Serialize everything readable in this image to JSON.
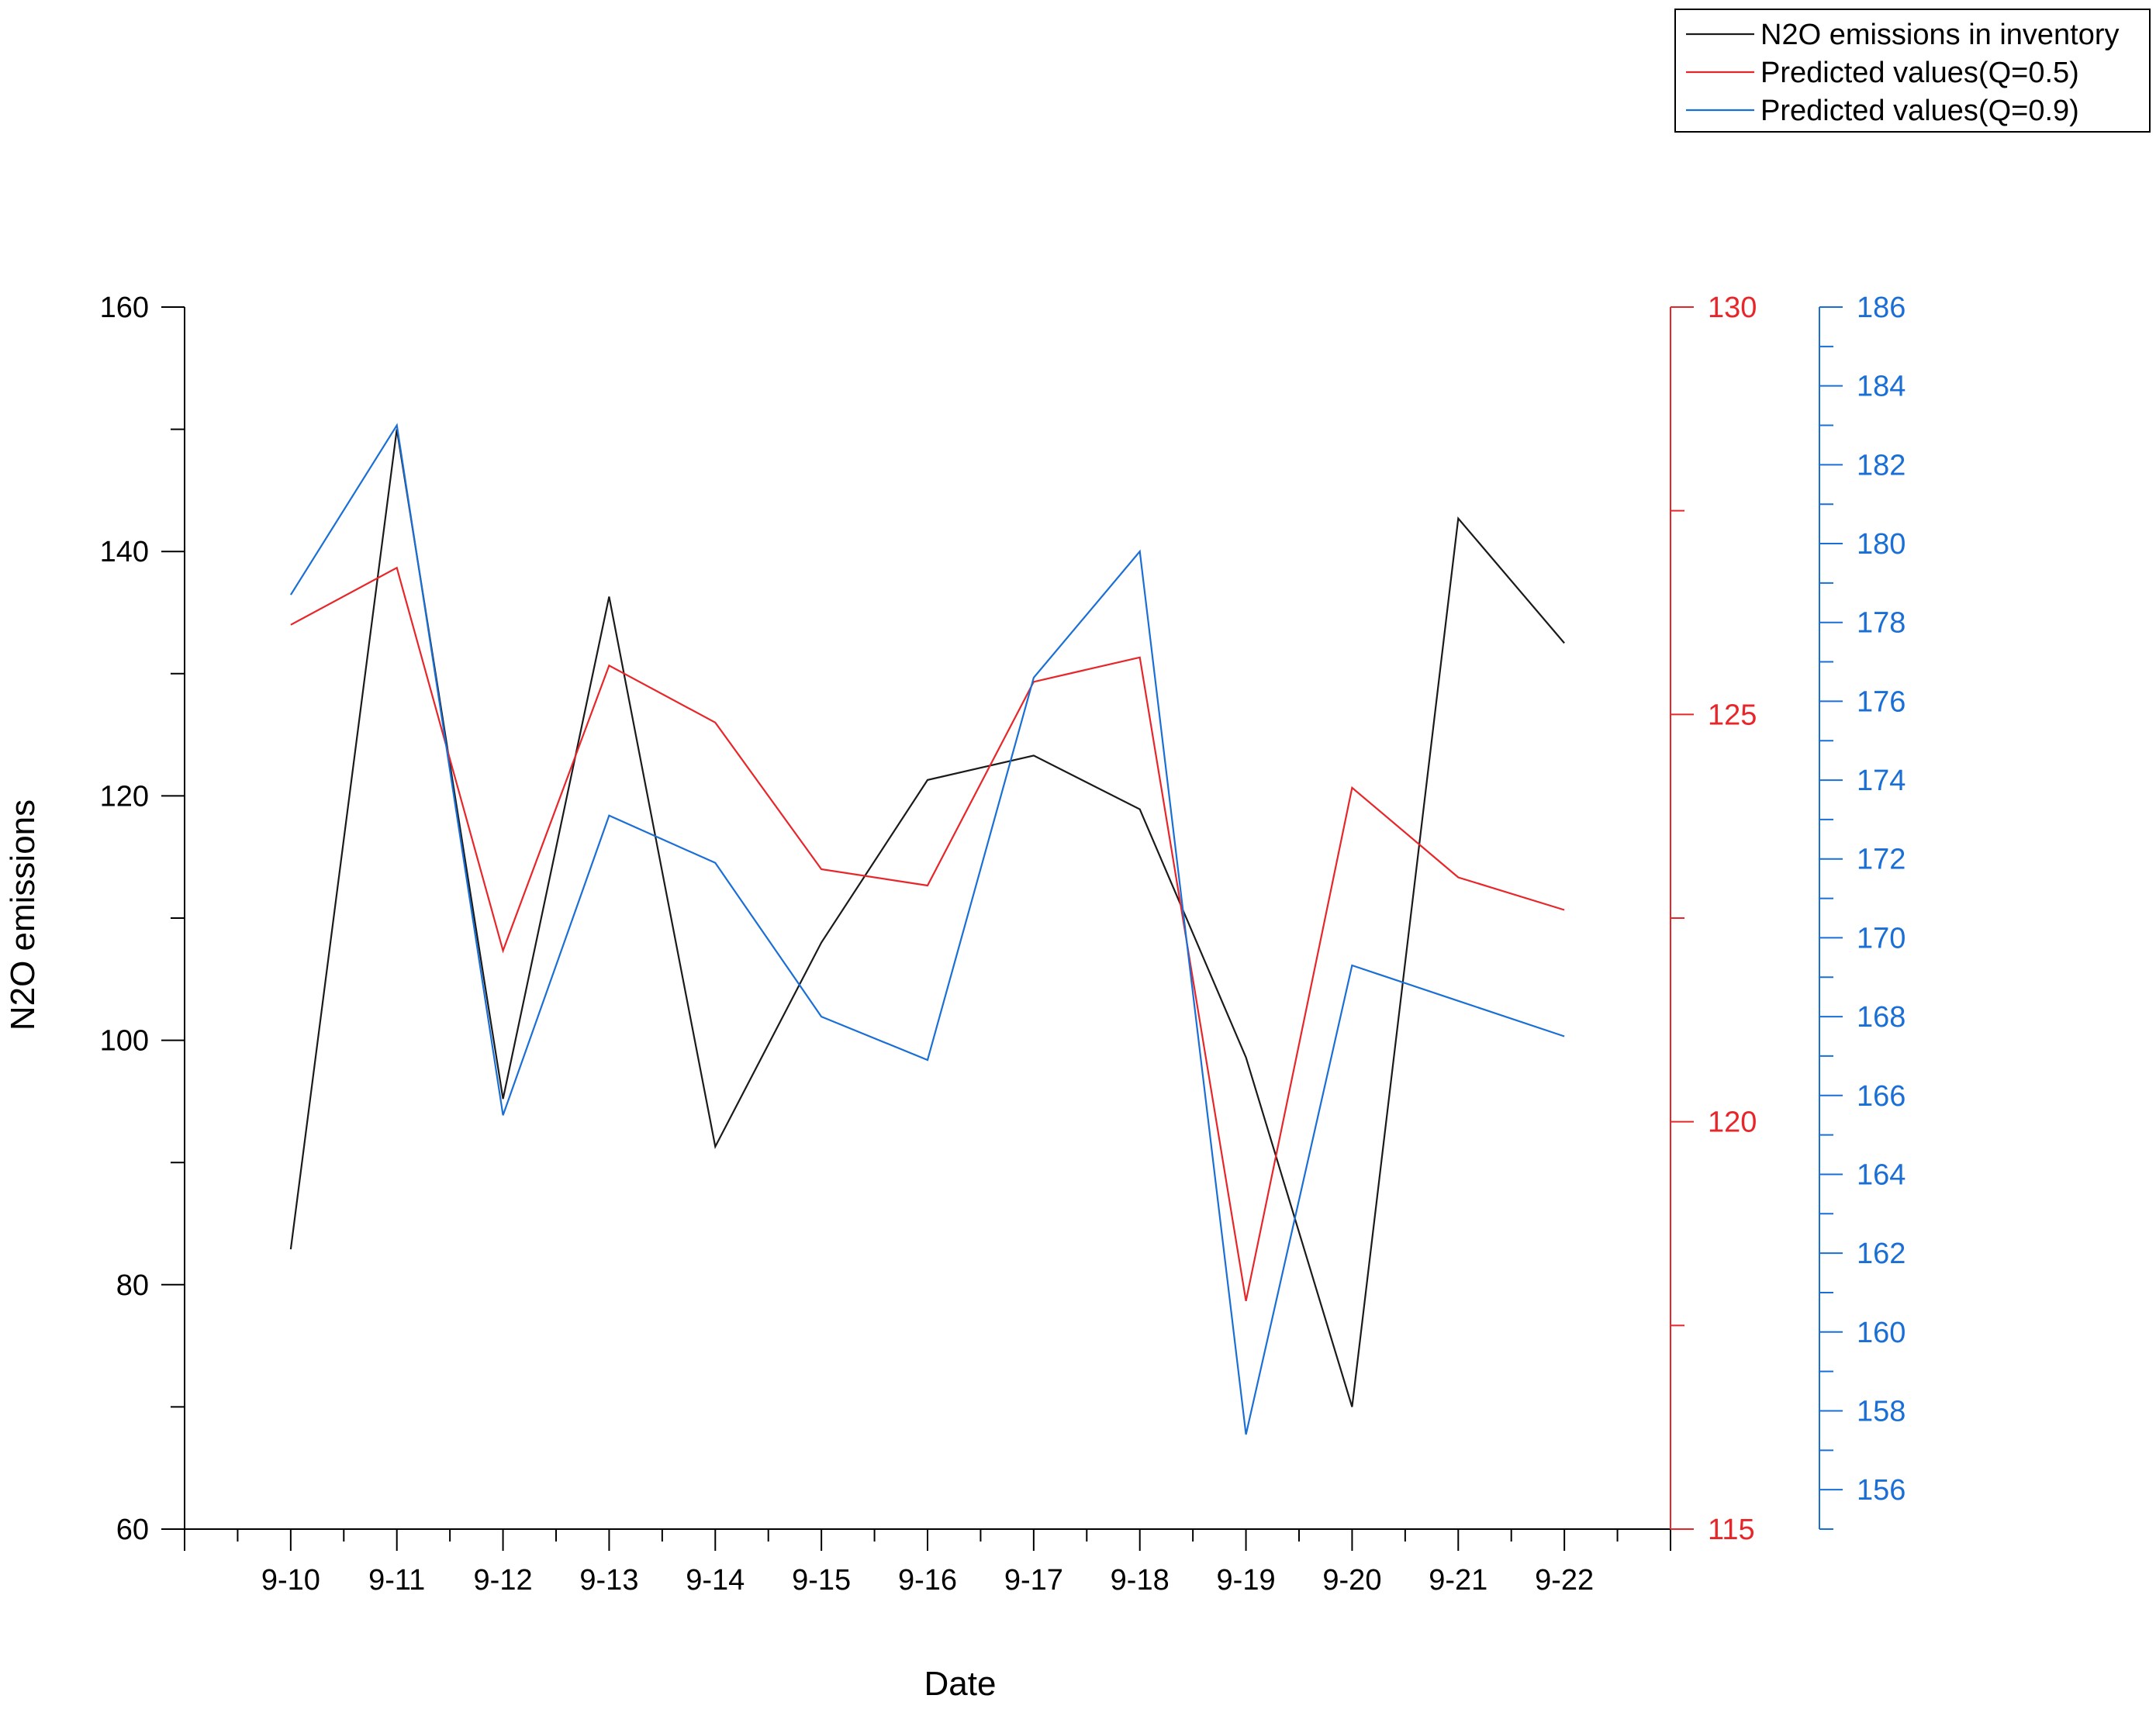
{
  "chart_data": {
    "type": "line",
    "xlabel": "Date",
    "ylabel": "N2O emissions",
    "categories": [
      "9-10",
      "9-11",
      "9-12",
      "9-13",
      "9-14",
      "9-15",
      "9-16",
      "9-17",
      "9-18",
      "9-19",
      "9-20",
      "9-21",
      "9-22"
    ],
    "axes": {
      "left": {
        "ylim": [
          60,
          160
        ],
        "ticks": [
          60,
          80,
          100,
          120,
          140,
          160
        ],
        "color": "#000000"
      },
      "right1": {
        "ylim": [
          115,
          130
        ],
        "ticks": [
          115,
          120,
          125,
          130
        ],
        "color": "#e8262a"
      },
      "right2": {
        "ylim": [
          155,
          186
        ],
        "ticks": [
          156,
          158,
          160,
          162,
          164,
          166,
          168,
          170,
          172,
          174,
          176,
          178,
          180,
          182,
          184,
          186
        ],
        "color": "#1a6fd6"
      }
    },
    "series": [
      {
        "name": "N2O emissions in inventory",
        "axis": "left",
        "color": "#1a1a1a",
        "values": [
          82.9,
          150.0,
          95.2,
          136.3,
          91.3,
          108.0,
          121.3,
          123.3,
          118.9,
          98.6,
          70.0,
          142.7,
          132.5
        ]
      },
      {
        "name": "Predicted values(Q=0.5)",
        "axis": "right1",
        "color": "#e8262a",
        "values": [
          126.1,
          126.8,
          122.1,
          125.6,
          124.9,
          123.1,
          122.9,
          125.4,
          125.7,
          117.8,
          124.1,
          123.0,
          122.6
        ]
      },
      {
        "name": "Predicted values(Q=0.9)",
        "axis": "right2",
        "color": "#1a6fd6",
        "values": [
          178.7,
          183.0,
          165.5,
          173.1,
          171.9,
          168.0,
          166.9,
          176.6,
          179.8,
          157.4,
          169.3,
          168.4,
          167.5
        ]
      }
    ],
    "legend_position": "top-right",
    "grid": false
  }
}
